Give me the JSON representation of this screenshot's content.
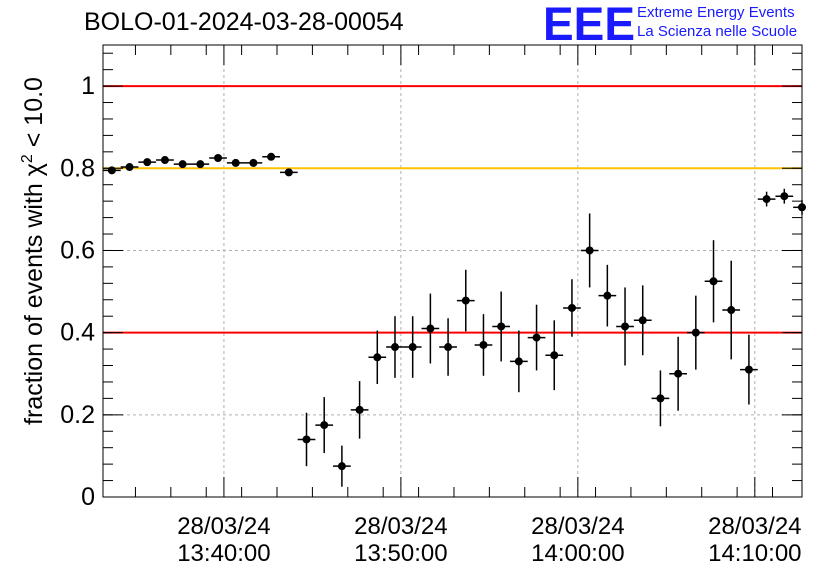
{
  "title": "BOLO-01-2024-03-28-00054",
  "logo": {
    "mark": "EEE",
    "line1": "Extreme Energy Events",
    "line2": "La Scienza nelle Scuole",
    "color": "#1a1aff"
  },
  "colors": {
    "red_line": "#ff0000",
    "yellow_line": "#ffc000",
    "marker": "#000000",
    "grid": "#b0b0b0"
  },
  "chart_data": {
    "type": "scatter",
    "ylabel": "fraction of events with χ² < 10.0",
    "ylim": [
      0,
      1.1
    ],
    "yticks": [
      0,
      0.2,
      0.4,
      0.6,
      0.8,
      1
    ],
    "ytick_labels": [
      "0",
      "0.2",
      "0.4",
      "0.6",
      "0.8",
      "1"
    ],
    "xlim": [
      "13:33:10",
      "14:12:40"
    ],
    "xticks": [
      {
        "date": "28/03/24",
        "time": "13:40:00"
      },
      {
        "date": "28/03/24",
        "time": "13:50:00"
      },
      {
        "date": "28/03/24",
        "time": "14:00:00"
      },
      {
        "date": "28/03/24",
        "time": "14:10:00"
      }
    ],
    "hlines": [
      {
        "y": 1.0,
        "color": "#ff0000"
      },
      {
        "y": 0.8,
        "color": "#ffc000"
      },
      {
        "y": 0.4,
        "color": "#ff0000"
      }
    ],
    "bin_width_minutes": 1,
    "points": [
      {
        "t": "13:33:40",
        "y": 0.795,
        "err": 0.006
      },
      {
        "t": "13:34:40",
        "y": 0.803,
        "err": 0.006
      },
      {
        "t": "13:35:40",
        "y": 0.815,
        "err": 0.006
      },
      {
        "t": "13:36:40",
        "y": 0.82,
        "err": 0.006
      },
      {
        "t": "13:37:40",
        "y": 0.81,
        "err": 0.006
      },
      {
        "t": "13:38:40",
        "y": 0.81,
        "err": 0.006
      },
      {
        "t": "13:39:40",
        "y": 0.825,
        "err": 0.006
      },
      {
        "t": "13:40:40",
        "y": 0.813,
        "err": 0.006
      },
      {
        "t": "13:41:40",
        "y": 0.813,
        "err": 0.006
      },
      {
        "t": "13:42:40",
        "y": 0.828,
        "err": 0.006
      },
      {
        "t": "13:43:40",
        "y": 0.79,
        "err": 0.006
      },
      {
        "t": "13:44:40",
        "y": 0.14,
        "err": 0.065
      },
      {
        "t": "13:45:40",
        "y": 0.175,
        "err": 0.068
      },
      {
        "t": "13:46:40",
        "y": 0.075,
        "err": 0.05
      },
      {
        "t": "13:47:40",
        "y": 0.212,
        "err": 0.07
      },
      {
        "t": "13:48:40",
        "y": 0.34,
        "err": 0.065
      },
      {
        "t": "13:49:40",
        "y": 0.365,
        "err": 0.075
      },
      {
        "t": "13:50:40",
        "y": 0.365,
        "err": 0.075
      },
      {
        "t": "13:51:40",
        "y": 0.41,
        "err": 0.085
      },
      {
        "t": "13:52:40",
        "y": 0.365,
        "err": 0.07
      },
      {
        "t": "13:53:40",
        "y": 0.478,
        "err": 0.075
      },
      {
        "t": "13:54:40",
        "y": 0.37,
        "err": 0.075
      },
      {
        "t": "13:55:40",
        "y": 0.415,
        "err": 0.085
      },
      {
        "t": "13:56:40",
        "y": 0.33,
        "err": 0.075
      },
      {
        "t": "13:57:40",
        "y": 0.388,
        "err": 0.08
      },
      {
        "t": "13:58:40",
        "y": 0.345,
        "err": 0.085
      },
      {
        "t": "13:59:40",
        "y": 0.46,
        "err": 0.07
      },
      {
        "t": "14:00:40",
        "y": 0.6,
        "err": 0.09
      },
      {
        "t": "14:01:40",
        "y": 0.49,
        "err": 0.075
      },
      {
        "t": "14:02:40",
        "y": 0.415,
        "err": 0.095
      },
      {
        "t": "14:03:40",
        "y": 0.43,
        "err": 0.085
      },
      {
        "t": "14:04:40",
        "y": 0.24,
        "err": 0.068
      },
      {
        "t": "14:05:40",
        "y": 0.3,
        "err": 0.09
      },
      {
        "t": "14:06:40",
        "y": 0.4,
        "err": 0.09
      },
      {
        "t": "14:07:40",
        "y": 0.525,
        "err": 0.1
      },
      {
        "t": "14:08:40",
        "y": 0.455,
        "err": 0.12
      },
      {
        "t": "14:09:40",
        "y": 0.31,
        "err": 0.085
      },
      {
        "t": "14:10:40",
        "y": 0.725,
        "err": 0.018
      },
      {
        "t": "14:11:40",
        "y": 0.732,
        "err": 0.018
      },
      {
        "t": "14:12:40",
        "y": 0.705,
        "err": 0.018
      }
    ]
  }
}
